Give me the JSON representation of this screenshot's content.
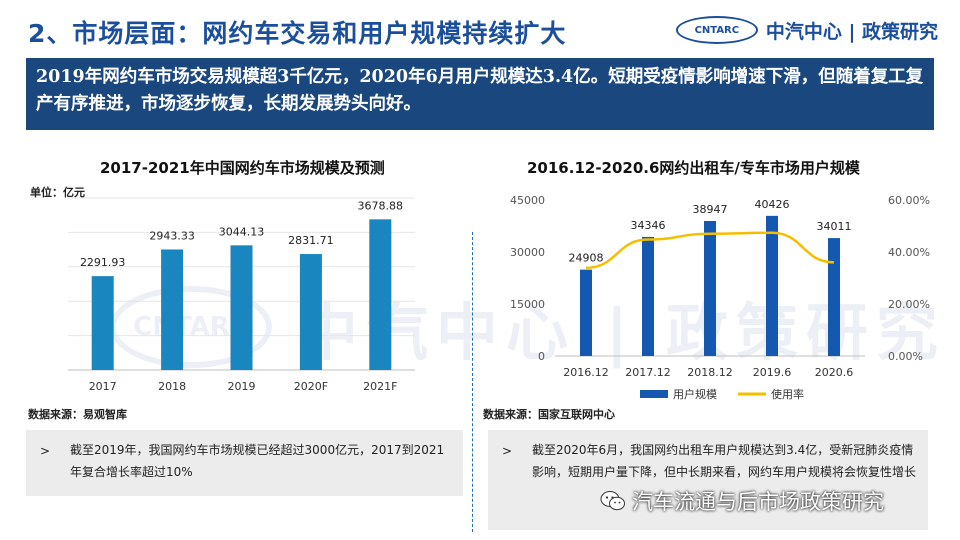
{
  "header": {
    "title": "2、市场层面：网约车交易和用户规模持续扩大",
    "logo_abbr": "CNTARC",
    "logo_text": "中汽中心 | 政策研究",
    "brand_color": "#1b4f9c"
  },
  "banner": {
    "text": "2019年网约车市场交易规模超3千亿元，2020年6月用户规模达3.4亿。短期受疫情影响增速下滑，但随着复工复产有序推进，市场逐步恢复，长期发展势头向好。",
    "bg": "#1b477f"
  },
  "watermark": {
    "abbr": "CNTARC",
    "text": "中汽中心 | 政策研究"
  },
  "left_chart": {
    "unit": "单位：亿元",
    "source": "数据来源：易观智库",
    "note_marker": ">",
    "note": "截至2019年，我国网约车市场规模已经超过3000亿元，2017到2021年复合增长率超过10%"
  },
  "right_chart": {
    "source": "数据来源：国家互联网中心",
    "note_marker": ">",
    "note": "截至2020年6月，我国网约出租车用户规模达到3.4亿，受新冠肺炎疫情影响，短期用户量下降，但中长期来看，网约车用户规模将会恢复性增长"
  },
  "footer": {
    "wechat_text": "汽车流通与后市场政策研究",
    "icon": "wechat-icon"
  },
  "chart_data": [
    {
      "type": "bar",
      "title": "2017-2021年中国网约车市场规模及预测",
      "categories": [
        "2017",
        "2018",
        "2019",
        "2020F",
        "2021F"
      ],
      "values": [
        2291.93,
        2943.33,
        3044.13,
        2831.71,
        3678.88
      ],
      "data_labels": [
        "2291.93",
        "2943.33",
        "3044.13",
        "2831.71",
        "3678.88"
      ],
      "ylim": [
        0,
        4200
      ],
      "ylabel": "亿元",
      "bar_color": "#1a86c0",
      "grid": true
    },
    {
      "type": "bar",
      "title": "2016.12-2020.6网约出租车/专车市场用户规模",
      "categories": [
        "2016.12",
        "2017.12",
        "2018.12",
        "2019.6",
        "2020.6"
      ],
      "series": [
        {
          "name": "用户规模",
          "type": "bar",
          "axis": "left",
          "values": [
            24908,
            34346,
            38947,
            40426,
            34011
          ],
          "color": "#1458b0"
        },
        {
          "name": "使用率",
          "type": "line",
          "axis": "right",
          "values": [
            0.339,
            0.448,
            0.47,
            0.474,
            0.36
          ],
          "color": "#f5bf00"
        }
      ],
      "data_labels": [
        "24908",
        "34346",
        "38947",
        "40426",
        "34011"
      ],
      "left_axis": {
        "ticks": [
          "45000",
          "30000",
          "15000",
          "0"
        ],
        "tick_values": [
          45000,
          30000,
          15000,
          0
        ],
        "ylim": [
          0,
          45000
        ]
      },
      "right_axis": {
        "ticks": [
          "60.00%",
          "40.00%",
          "20.00%",
          "0.00%"
        ],
        "tick_values": [
          0.6,
          0.4,
          0.2,
          0
        ],
        "ylim": [
          0,
          0.6
        ]
      },
      "legend": [
        "用户规模",
        "使用率"
      ],
      "legend_position": "bottom",
      "grid": false
    }
  ]
}
